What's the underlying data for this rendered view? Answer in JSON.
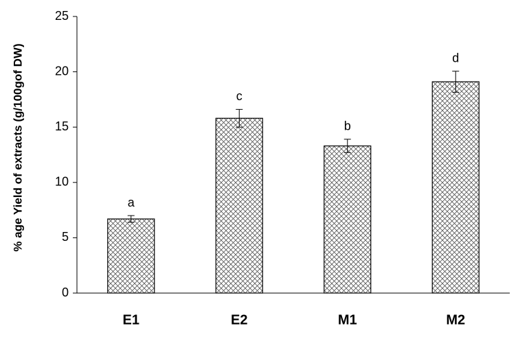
{
  "chart_data": {
    "type": "bar",
    "ylabel": "% age Yield of extracts (g/100gof DW)",
    "categories": [
      "E1",
      "E2",
      "M1",
      "M2"
    ],
    "values": [
      6.7,
      15.8,
      13.3,
      19.1
    ],
    "errors": [
      0.3,
      0.8,
      0.6,
      0.95
    ],
    "annotations": [
      "a",
      "c",
      "b",
      "d"
    ],
    "color": "#000000",
    "ylim": [
      0,
      25
    ],
    "yticks": [
      0,
      5,
      10,
      15,
      20,
      25
    ],
    "grid": false
  }
}
